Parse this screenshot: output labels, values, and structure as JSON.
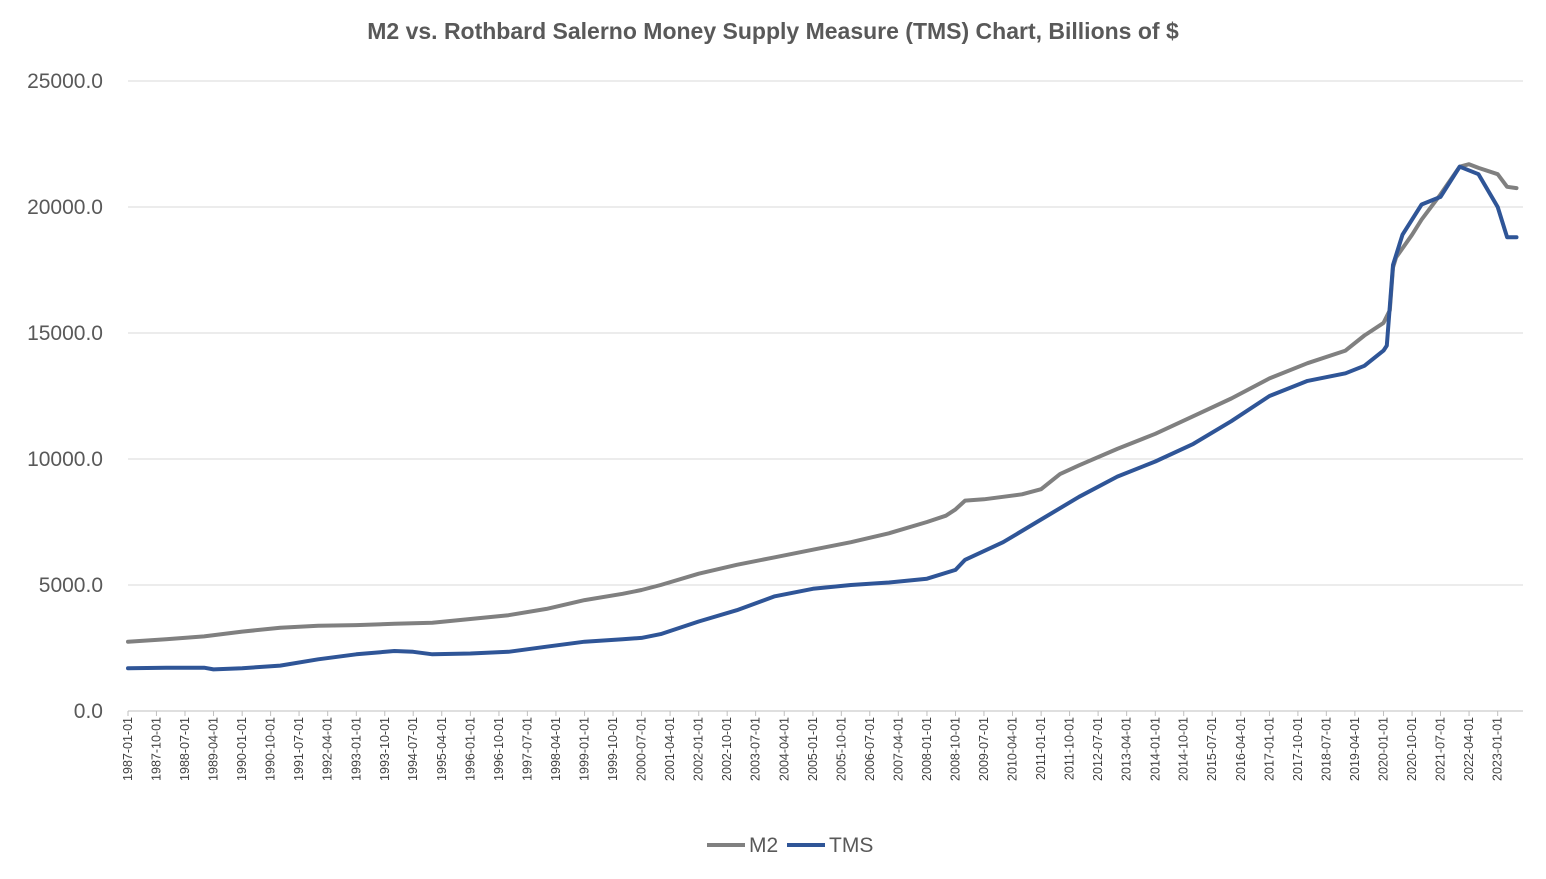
{
  "chart_data": {
    "type": "line",
    "title": "M2 vs. Rothbard Salerno Money Supply Measure (TMS) Chart, Billions of $",
    "xlabel": "",
    "ylabel": "",
    "ylim": [
      0,
      25000
    ],
    "yticks": [
      "0.0",
      "5000.0",
      "10000.0",
      "15000.0",
      "20000.0",
      "25000.0"
    ],
    "grid": true,
    "legend": "bottom",
    "xtick_labels": [
      "1987-01-01",
      "1987-10-01",
      "1988-07-01",
      "1989-04-01",
      "1990-01-01",
      "1990-10-01",
      "1991-07-01",
      "1992-04-01",
      "1993-01-01",
      "1993-10-01",
      "1994-07-01",
      "1995-04-01",
      "1996-01-01",
      "1996-10-01",
      "1997-07-01",
      "1998-04-01",
      "1999-01-01",
      "1999-10-01",
      "2000-07-01",
      "2001-04-01",
      "2002-01-01",
      "2002-10-01",
      "2003-07-01",
      "2004-04-01",
      "2005-01-01",
      "2005-10-01",
      "2006-07-01",
      "2007-04-01",
      "2008-01-01",
      "2008-10-01",
      "2009-07-01",
      "2010-04-01",
      "2011-01-01",
      "2011-10-01",
      "2012-07-01",
      "2013-04-01",
      "2014-01-01",
      "2014-10-01",
      "2015-07-01",
      "2016-04-01",
      "2017-01-01",
      "2017-10-01",
      "2018-07-01",
      "2019-04-01",
      "2020-01-01",
      "2020-10-01",
      "2021-07-01",
      "2022-04-01",
      "2023-01-01"
    ],
    "series": [
      {
        "name": "M2",
        "color": "#808080",
        "points": [
          [
            "1987-01-01",
            2750
          ],
          [
            "1988-01-01",
            2850
          ],
          [
            "1989-01-01",
            2960
          ],
          [
            "1990-01-01",
            3150
          ],
          [
            "1991-01-01",
            3300
          ],
          [
            "1992-01-01",
            3380
          ],
          [
            "1993-01-01",
            3410
          ],
          [
            "1994-01-01",
            3460
          ],
          [
            "1995-01-01",
            3500
          ],
          [
            "1996-01-01",
            3650
          ],
          [
            "1997-01-01",
            3800
          ],
          [
            "1998-01-01",
            4050
          ],
          [
            "1999-01-01",
            4400
          ],
          [
            "2000-01-01",
            4650
          ],
          [
            "2000-07-01",
            4800
          ],
          [
            "2001-01-01",
            5000
          ],
          [
            "2002-01-01",
            5450
          ],
          [
            "2003-01-01",
            5800
          ],
          [
            "2004-01-01",
            6100
          ],
          [
            "2005-01-01",
            6400
          ],
          [
            "2006-01-01",
            6700
          ],
          [
            "2007-01-01",
            7050
          ],
          [
            "2008-01-01",
            7500
          ],
          [
            "2008-07-01",
            7750
          ],
          [
            "2008-10-01",
            8000
          ],
          [
            "2009-01-01",
            8350
          ],
          [
            "2009-07-01",
            8400
          ],
          [
            "2010-01-01",
            8500
          ],
          [
            "2010-07-01",
            8600
          ],
          [
            "2011-01-01",
            8800
          ],
          [
            "2011-07-01",
            9400
          ],
          [
            "2012-01-01",
            9750
          ],
          [
            "2013-01-01",
            10400
          ],
          [
            "2014-01-01",
            11000
          ],
          [
            "2015-01-01",
            11700
          ],
          [
            "2016-01-01",
            12400
          ],
          [
            "2017-01-01",
            13200
          ],
          [
            "2018-01-01",
            13800
          ],
          [
            "2019-01-01",
            14300
          ],
          [
            "2019-07-01",
            14900
          ],
          [
            "2020-01-01",
            15400
          ],
          [
            "2020-03-01",
            15900
          ],
          [
            "2020-04-01",
            17600
          ],
          [
            "2020-05-01",
            18000
          ],
          [
            "2020-10-01",
            18900
          ],
          [
            "2021-01-01",
            19500
          ],
          [
            "2021-07-01",
            20500
          ],
          [
            "2022-01-01",
            21600
          ],
          [
            "2022-04-01",
            21700
          ],
          [
            "2022-07-01",
            21550
          ],
          [
            "2023-01-01",
            21300
          ],
          [
            "2023-04-01",
            20800
          ],
          [
            "2023-07-01",
            20750
          ]
        ]
      },
      {
        "name": "TMS",
        "color": "#2F5597",
        "points": [
          [
            "1987-01-01",
            1700
          ],
          [
            "1988-01-01",
            1720
          ],
          [
            "1989-01-01",
            1720
          ],
          [
            "1989-04-01",
            1650
          ],
          [
            "1990-01-01",
            1700
          ],
          [
            "1991-01-01",
            1800
          ],
          [
            "1992-01-01",
            2050
          ],
          [
            "1993-01-01",
            2250
          ],
          [
            "1994-01-01",
            2380
          ],
          [
            "1994-07-01",
            2350
          ],
          [
            "1995-01-01",
            2250
          ],
          [
            "1996-01-01",
            2280
          ],
          [
            "1997-01-01",
            2350
          ],
          [
            "1998-01-01",
            2550
          ],
          [
            "1999-01-01",
            2750
          ],
          [
            "2000-01-01",
            2850
          ],
          [
            "2000-07-01",
            2900
          ],
          [
            "2001-01-01",
            3050
          ],
          [
            "2002-01-01",
            3550
          ],
          [
            "2003-01-01",
            4000
          ],
          [
            "2004-01-01",
            4550
          ],
          [
            "2005-01-01",
            4850
          ],
          [
            "2006-01-01",
            5000
          ],
          [
            "2007-01-01",
            5100
          ],
          [
            "2008-01-01",
            5250
          ],
          [
            "2008-10-01",
            5600
          ],
          [
            "2009-01-01",
            6000
          ],
          [
            "2010-01-01",
            6700
          ],
          [
            "2011-01-01",
            7600
          ],
          [
            "2012-01-01",
            8500
          ],
          [
            "2013-01-01",
            9300
          ],
          [
            "2014-01-01",
            9900
          ],
          [
            "2015-01-01",
            10600
          ],
          [
            "2016-01-01",
            11500
          ],
          [
            "2017-01-01",
            12500
          ],
          [
            "2018-01-01",
            13100
          ],
          [
            "2019-01-01",
            13400
          ],
          [
            "2019-07-01",
            13700
          ],
          [
            "2020-01-01",
            14300
          ],
          [
            "2020-02-01",
            14500
          ],
          [
            "2020-04-01",
            17700
          ],
          [
            "2020-07-01",
            18900
          ],
          [
            "2021-01-01",
            20100
          ],
          [
            "2021-07-01",
            20400
          ],
          [
            "2022-01-01",
            21600
          ],
          [
            "2022-07-01",
            21300
          ],
          [
            "2023-01-01",
            20000
          ],
          [
            "2023-04-01",
            18800
          ],
          [
            "2023-07-01",
            18800
          ]
        ]
      }
    ]
  }
}
